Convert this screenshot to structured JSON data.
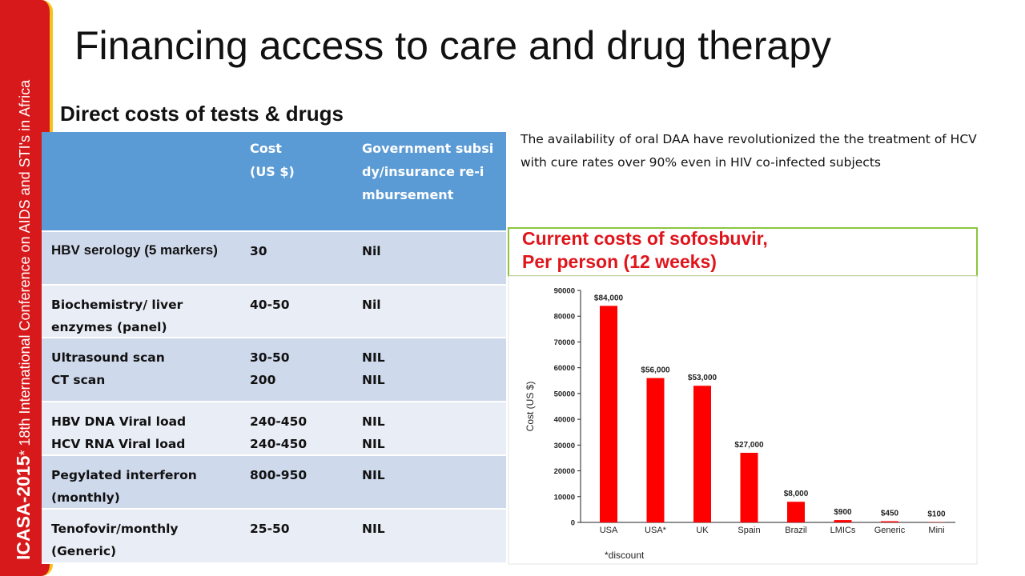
{
  "sidebar": {
    "brand": "ICASA-2015",
    "conference": "* 18th International Conference on AIDS and STI's in Africa"
  },
  "title": "Financing access to care and drug therapy",
  "subtitle": "Direct costs of tests & drugs",
  "table": {
    "header": [
      "Cost\n(US $)",
      "Government subsidy/insurance re-imbursement"
    ],
    "rows": [
      {
        "item": [
          "HBV serology (5 markers)"
        ],
        "cost": [
          "30"
        ],
        "subsidy": [
          "Nil"
        ]
      },
      {
        "item": [
          "Biochemistry/ liver enzymes (panel)"
        ],
        "cost": [
          "40-50"
        ],
        "subsidy": [
          "Nil"
        ]
      },
      {
        "item": [
          "Ultrasound scan",
          "CT scan"
        ],
        "cost": [
          "30-50",
          "200"
        ],
        "subsidy": [
          "NIL",
          "NIL"
        ]
      },
      {
        "item": [
          "HBV DNA Viral load",
          "HCV RNA Viral load"
        ],
        "cost": [
          "240-450",
          "240-450"
        ],
        "subsidy": [
          "NIL",
          "NIL"
        ]
      },
      {
        "item": [
          "Pegylated interferon (monthly)"
        ],
        "cost": [
          "800-950"
        ],
        "subsidy": [
          "NIL"
        ]
      },
      {
        "item": [
          "Tenofovir/monthly (Generic)"
        ],
        "cost": [
          "25-50"
        ],
        "subsidy": [
          "NIL"
        ]
      }
    ]
  },
  "paragraph": "The availability of oral DAA have revolutionized the the treatment of HCV  with cure rates over 90%  even in HIV co-infected subjects",
  "chart_data": {
    "type": "bar",
    "title": [
      "Current costs of sofosbuvir,",
      "Per person (12 weeks)"
    ],
    "y_label": "Cost (US $)",
    "categories": [
      "USA",
      "USA*",
      "UK",
      "Spain",
      "Brazil",
      "LMICs",
      "Generic",
      "Mini"
    ],
    "values": [
      84000,
      56000,
      53000,
      27000,
      8000,
      900,
      450,
      100
    ],
    "value_labels": [
      "$84,000",
      "$56,000",
      "$53,000",
      "$27,000",
      "$8,000",
      "$900",
      "$450",
      "$100"
    ],
    "color": "#ff0000",
    "ylim": [
      0,
      90000
    ],
    "yticks": [
      0,
      10000,
      20000,
      30000,
      40000,
      50000,
      60000,
      70000,
      80000,
      90000
    ],
    "footnote": "*discount"
  }
}
